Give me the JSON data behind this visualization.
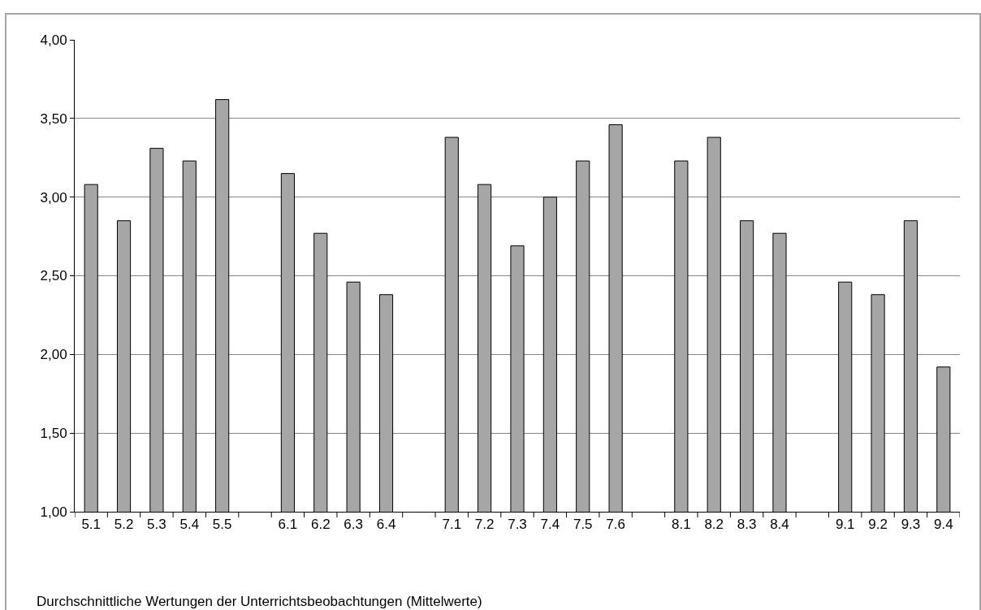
{
  "chart_data": {
    "type": "bar",
    "categories": [
      "5.1",
      "5.2",
      "5.3",
      "5.4",
      "5.5",
      null,
      "6.1",
      "6.2",
      "6.3",
      "6.4",
      null,
      "7.1",
      "7.2",
      "7.3",
      "7.4",
      "7.5",
      "7.6",
      null,
      "8.1",
      "8.2",
      "8.3",
      "8.4",
      null,
      "9.1",
      "9.2",
      "9.3",
      "9.4"
    ],
    "values": [
      3.08,
      2.85,
      3.31,
      3.23,
      3.62,
      null,
      3.15,
      2.77,
      2.46,
      2.38,
      null,
      3.38,
      3.08,
      2.69,
      3.0,
      3.23,
      3.46,
      null,
      3.23,
      3.38,
      2.85,
      2.77,
      null,
      2.46,
      2.38,
      2.85,
      1.92
    ],
    "color": "#a6a6a6",
    "ylim": [
      1,
      4
    ],
    "yticks": [
      {
        "value": 1,
        "label": "1,00"
      },
      {
        "value": 1.5,
        "label": "1,50"
      },
      {
        "value": 2,
        "label": "2,00"
      },
      {
        "value": 2.5,
        "label": "2,50"
      },
      {
        "value": 3,
        "label": "3,00"
      },
      {
        "value": 3.5,
        "label": "3,50"
      },
      {
        "value": 4,
        "label": "4,00"
      }
    ],
    "grid": "y",
    "annotations": [
      "Durchschnittliche Wertungen der Unterrichtsbeobachtungen (Mittelwerte)"
    ]
  }
}
